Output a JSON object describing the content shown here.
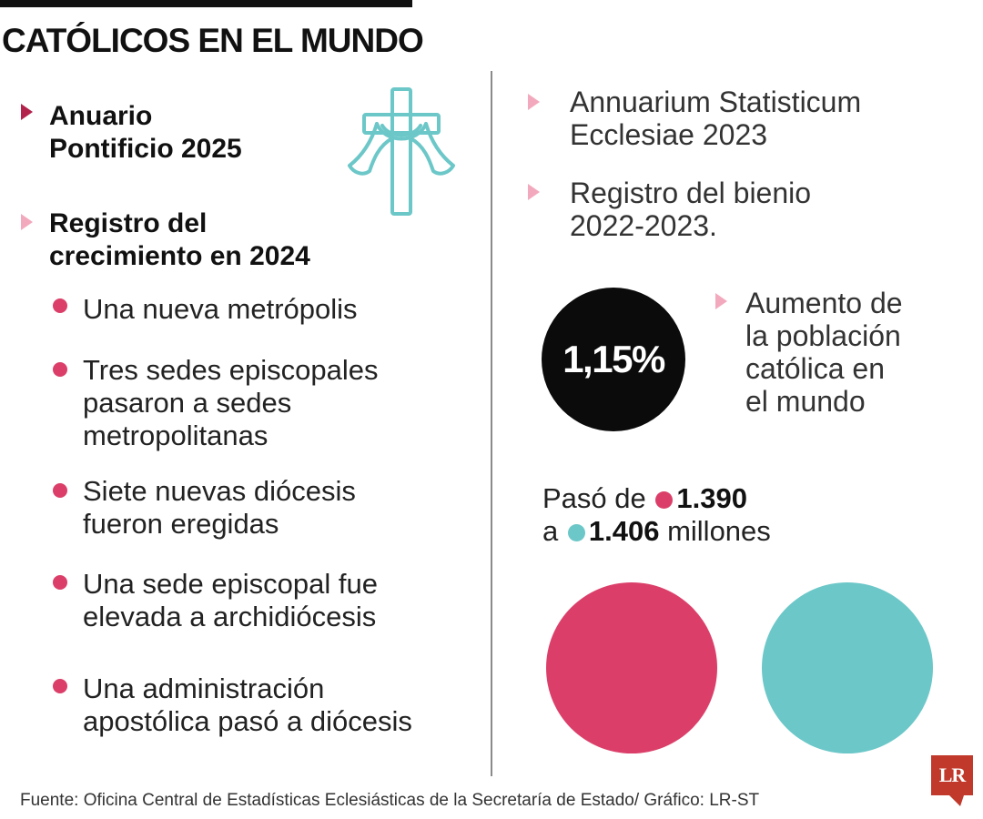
{
  "title": "CATÓLICOS EN EL MUNDO",
  "left": {
    "heading1": [
      "Anuario",
      "Pontificio 2025"
    ],
    "heading2": [
      "Registro del",
      "crecimiento en 2024"
    ],
    "items": [
      [
        "Una nueva metrópolis"
      ],
      [
        "Tres sedes episcopales",
        "pasaron a sedes",
        "metropolitanas"
      ],
      [
        "Siete nuevas diócesis",
        "fueron eregidas"
      ],
      [
        "Una sede episcopal fue",
        "elevada a archidiócesis"
      ],
      [
        "Una administración",
        "apostólica pasó a diócesis"
      ]
    ]
  },
  "right": {
    "annuarium": [
      "Annuarium Statisticum",
      "Ecclesiae 2023"
    ],
    "registro": [
      "Registro del bienio",
      "2022-2023."
    ],
    "percent": "1,15%",
    "aumento": [
      "Aumento de",
      "la población",
      "católica en",
      "el mundo"
    ],
    "paso_prefix": "Pasó de",
    "from_value": "1.390",
    "a_prefix": "a",
    "to_value": "1.406",
    "unit": "millones"
  },
  "source": "Fuente: Oficina Central de Estadísticas Eclesiásticas de la Secretaría de Estado/ Gráfico: LR-ST",
  "logo": "LR",
  "colors": {
    "pink": "#db3f69",
    "teal": "#6cc7c8",
    "black": "#0b0b0b",
    "logo_red": "#c0392b"
  },
  "icons": [
    "cross-icon"
  ]
}
